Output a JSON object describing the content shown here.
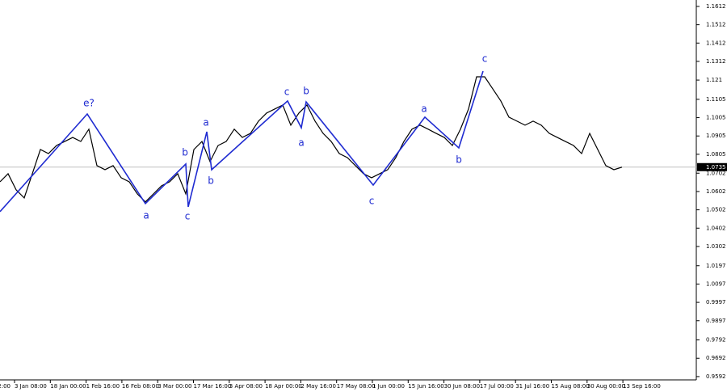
{
  "chart_data": {
    "type": "line",
    "ylim": [
      0.9574,
      1.1647
    ],
    "yticks": [
      1.1612,
      1.1512,
      1.1412,
      1.1312,
      1.121,
      1.1105,
      1.1005,
      1.0905,
      1.0805,
      1.0702,
      1.0602,
      1.0502,
      1.0402,
      1.0302,
      1.0197,
      1.0097,
      0.9997,
      0.9897,
      0.9792,
      0.9692,
      0.9592
    ],
    "x_labels": [
      "2:00",
      "3 Jan 08:00",
      "18 Jan 00:00",
      "1 Feb 16:00",
      "16 Feb 08:00",
      "3 Mar 00:00",
      "17 Mar 16:00",
      "3 Apr 08:00",
      "18 Apr 00:00",
      "2 May 16:00",
      "17 May 08:00",
      "1 Jun 00:00",
      "15 Jun 16:00",
      "30 Jun 08:00",
      "17 Jul 00:00",
      "31 Jul 16:00",
      "15 Aug 08:00",
      "30 Aug 00:00",
      "13 Sep 16:00"
    ],
    "price": {
      "color": "#000000",
      "values": [
        1.0655,
        1.0699,
        1.0611,
        1.0567,
        1.0699,
        1.0831,
        1.0809,
        1.0853,
        1.0875,
        1.0897,
        1.0875,
        1.0942,
        1.0743,
        1.0721,
        1.0743,
        1.0677,
        1.0655,
        1.0589,
        1.0545,
        1.0589,
        1.0633,
        1.0655,
        1.0699,
        1.0589,
        1.0831,
        1.0875,
        1.0765,
        1.0853,
        1.0875,
        1.0942,
        1.0897,
        1.0919,
        1.0986,
        1.103,
        1.1052,
        1.1074,
        1.0964,
        1.103,
        1.1074,
        1.0986,
        1.0919,
        1.0875,
        1.0809,
        1.0787,
        1.0743,
        1.0699,
        1.0677,
        1.0699,
        1.0721,
        1.0787,
        1.0875,
        1.0942,
        1.0964,
        1.0942,
        1.0919,
        1.0897,
        1.0853,
        1.0942,
        1.1052,
        1.1228,
        1.1228,
        1.1162,
        1.1096,
        1.1008,
        1.0986,
        1.0964,
        1.0986,
        1.0964,
        1.0919,
        1.0897,
        1.0875,
        1.0853,
        1.0809,
        1.0919,
        1.0831,
        1.0743,
        1.0721,
        1.0735
      ]
    },
    "current_price": 1.0735,
    "wave": {
      "color": "#1f2bd1",
      "x": [
        0,
        10.8,
        18,
        23,
        23.3,
        25.6,
        26.2,
        35.6,
        37.3,
        37.9,
        46.2,
        52.6,
        56.8,
        59.8
      ],
      "values": [
        1.0492,
        1.1025,
        1.0536,
        1.0752,
        1.0518,
        1.0928,
        1.0721,
        1.1096,
        1.095,
        1.1091,
        1.0637,
        1.1008,
        1.084,
        1.1259
      ]
    },
    "wave_labels": [
      "e?",
      "a",
      "b",
      "c",
      "a",
      "b",
      "c",
      "a",
      "b",
      "c",
      "a",
      "b",
      "c"
    ]
  }
}
